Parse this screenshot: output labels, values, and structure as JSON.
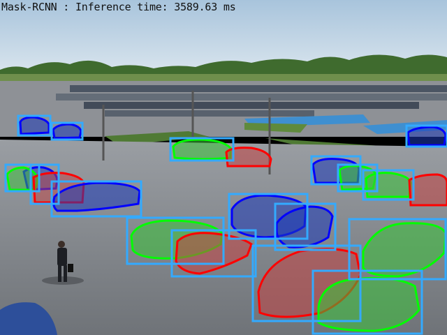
{
  "overlay": {
    "title": "Mask-RCNN : Inference time: 3589.63 ms",
    "box_color": "#33aaff"
  },
  "scene": {
    "sky_top": "#a8c4dc",
    "sky_bottom": "#dbe6ee",
    "tree_color": "#3f6b2e",
    "lot_color": "#8c8f93"
  },
  "detections": [
    {
      "label": "car",
      "mask_color": "#0000ff"
    },
    {
      "label": "car",
      "mask_color": "#0000ff"
    },
    {
      "label": "car",
      "mask_color": "#0000ff"
    },
    {
      "label": "car",
      "mask_color": "#00ff00"
    },
    {
      "label": "car",
      "mask_color": "#ff0000"
    },
    {
      "label": "car",
      "mask_color": "#0000ff"
    },
    {
      "label": "car",
      "mask_color": "#00ff00"
    },
    {
      "label": "car",
      "mask_color": "#00ff00"
    },
    {
      "label": "car",
      "mask_color": "#ff0000"
    },
    {
      "label": "car",
      "mask_color": "#00ff00"
    },
    {
      "label": "car",
      "mask_color": "#ff0000"
    },
    {
      "label": "car",
      "mask_color": "#0000ff"
    },
    {
      "label": "car",
      "mask_color": "#00ff00"
    },
    {
      "label": "car",
      "mask_color": "#ff0000"
    },
    {
      "label": "car",
      "mask_color": "#0000ff"
    },
    {
      "label": "car",
      "mask_color": "#0000ff"
    },
    {
      "label": "car",
      "mask_color": "#00ff00"
    },
    {
      "label": "car",
      "mask_color": "#ff0000"
    },
    {
      "label": "car",
      "mask_color": "#00ff00"
    },
    {
      "label": "car",
      "mask_color": "#ff0000"
    },
    {
      "label": "car",
      "mask_color": "#00ff00"
    }
  ]
}
